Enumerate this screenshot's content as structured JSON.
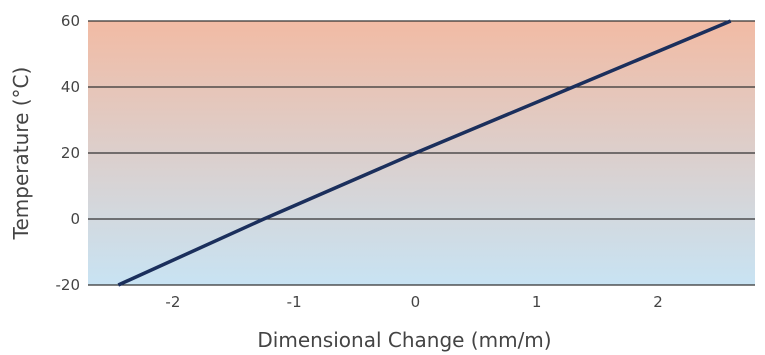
{
  "chart_data": {
    "type": "line",
    "title": "",
    "xlabel": "Dimensional Change (mm/m)",
    "ylabel": "Temperature (°C)",
    "xlim": [
      -2.7,
      2.8
    ],
    "ylim": [
      -20,
      60
    ],
    "x_ticks": [
      -2,
      -1,
      0,
      1,
      2
    ],
    "y_ticks": [
      -20,
      0,
      20,
      40,
      60
    ],
    "x_tick_labels": [
      "-2",
      "-1",
      "0",
      "1",
      "2"
    ],
    "y_tick_labels": [
      "-20",
      "0",
      "20",
      "40",
      "60"
    ],
    "grid": "horizontal",
    "legend": "none",
    "series": [
      {
        "x": [
          -2.45,
          -1.25,
          0,
          1.3,
          2.6
        ],
        "y": [
          -20,
          0,
          20,
          40,
          60
        ]
      }
    ],
    "colors": {
      "line": "#1b2f5c",
      "background_top": "#f2bba4",
      "background_bottom": "#c8e3f3",
      "grid": "#333333",
      "axis_text": "#444444"
    }
  }
}
